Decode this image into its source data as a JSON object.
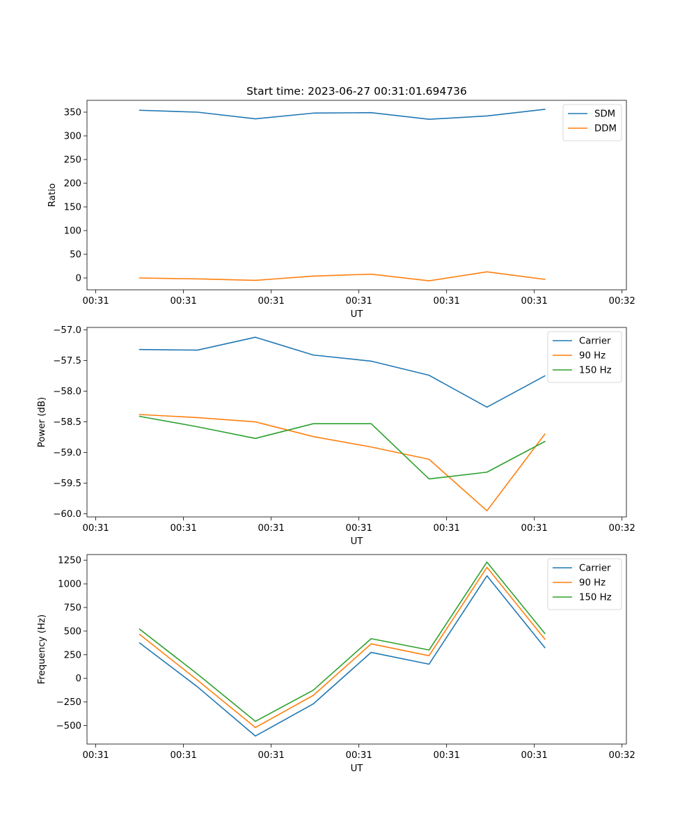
{
  "figure": {
    "title": "Start time: 2023-06-27 00:31:01.694736"
  },
  "chart_data": [
    {
      "type": "line",
      "title": "Start time: 2023-06-27 00:31:01.694736",
      "xlabel": "UT",
      "ylabel": "Ratio",
      "x_tick_labels": [
        "00:31",
        "00:31",
        "00:31",
        "00:31",
        "00:31",
        "00:31",
        "00:32"
      ],
      "y_ticks": [
        0,
        50,
        100,
        150,
        200,
        250,
        300,
        350
      ],
      "ylim": [
        -25,
        375
      ],
      "x": [
        0.5,
        1.16,
        1.82,
        2.48,
        3.14,
        3.8,
        4.46,
        5.12
      ],
      "xlim": [
        -0.1,
        6.05
      ],
      "x_ticks": [
        0,
        1,
        2,
        3,
        4,
        5,
        6
      ],
      "grid": false,
      "legend_position": "upper right",
      "series": [
        {
          "name": "SDM",
          "color": "#1f77b4",
          "values": [
            354,
            350,
            336,
            348,
            349,
            335,
            342,
            356
          ]
        },
        {
          "name": "DDM",
          "color": "#ff7f0e",
          "values": [
            0,
            -2,
            -5,
            4,
            8,
            -6,
            13,
            -3
          ]
        }
      ]
    },
    {
      "type": "line",
      "title": "",
      "xlabel": "UT",
      "ylabel": "Power (dB)",
      "x_tick_labels": [
        "00:31",
        "00:31",
        "00:31",
        "00:31",
        "00:31",
        "00:31",
        "00:32"
      ],
      "y_ticks": [
        -60.0,
        -59.5,
        -59.0,
        -58.5,
        -58.0,
        -57.5,
        -57.0
      ],
      "y_tick_labels": [
        "−60.0",
        "−59.5",
        "−59.0",
        "−58.5",
        "−58.0",
        "−57.5",
        "−57.0"
      ],
      "ylim": [
        -60.05,
        -56.96
      ],
      "x": [
        0.5,
        1.16,
        1.82,
        2.48,
        3.14,
        3.8,
        4.46,
        5.12
      ],
      "xlim": [
        -0.1,
        6.05
      ],
      "x_ticks": [
        0,
        1,
        2,
        3,
        4,
        5,
        6
      ],
      "grid": false,
      "legend_position": "upper right",
      "series": [
        {
          "name": "Carrier",
          "color": "#1f77b4",
          "values": [
            -57.32,
            -57.33,
            -57.12,
            -57.41,
            -57.51,
            -57.74,
            -58.26,
            -57.75
          ]
        },
        {
          "name": "90 Hz",
          "color": "#ff7f0e",
          "values": [
            -58.38,
            -58.43,
            -58.5,
            -58.74,
            -58.91,
            -59.11,
            -59.95,
            -58.7
          ]
        },
        {
          "name": "150 Hz",
          "color": "#2ca02c",
          "values": [
            -58.41,
            -58.58,
            -58.77,
            -58.53,
            -58.53,
            -59.43,
            -59.32,
            -58.82
          ]
        }
      ]
    },
    {
      "type": "line",
      "title": "",
      "xlabel": "UT",
      "ylabel": "Frequency (Hz)",
      "x_tick_labels": [
        "00:31",
        "00:31",
        "00:31",
        "00:31",
        "00:31",
        "00:31",
        "00:32"
      ],
      "y_ticks": [
        -500,
        -250,
        0,
        250,
        500,
        750,
        1000,
        1250
      ],
      "y_tick_labels": [
        "−500",
        "−250",
        "0",
        "250",
        "500",
        "750",
        "1000",
        "1250"
      ],
      "ylim": [
        -695,
        1310
      ],
      "x": [
        0.5,
        1.16,
        1.82,
        2.48,
        3.14,
        3.8,
        4.46,
        5.12
      ],
      "xlim": [
        -0.1,
        6.05
      ],
      "x_ticks": [
        0,
        1,
        2,
        3,
        4,
        5,
        6
      ],
      "grid": false,
      "legend_position": "upper right",
      "series": [
        {
          "name": "Carrier",
          "color": "#1f77b4",
          "values": [
            375,
            -90,
            -610,
            -270,
            275,
            150,
            1085,
            325
          ]
        },
        {
          "name": "90 Hz",
          "color": "#ff7f0e",
          "values": [
            465,
            -20,
            -520,
            -180,
            365,
            240,
            1175,
            415
          ]
        },
        {
          "name": "150 Hz",
          "color": "#2ca02c",
          "values": [
            520,
            45,
            -455,
            -125,
            420,
            300,
            1230,
            475
          ]
        }
      ]
    }
  ]
}
